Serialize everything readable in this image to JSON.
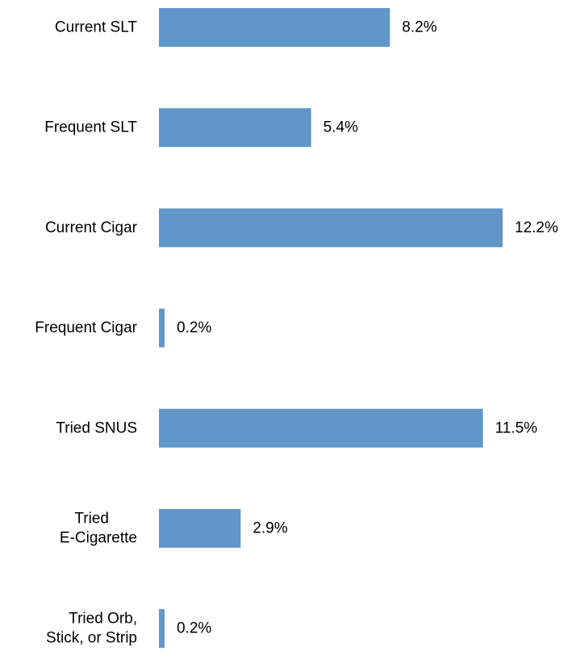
{
  "chart_data": {
    "type": "bar",
    "orientation": "horizontal",
    "categories": [
      [
        "Current SLT"
      ],
      [
        "Frequent SLT"
      ],
      [
        "Current Cigar"
      ],
      [
        "Frequent Cigar"
      ],
      [
        "Tried SNUS"
      ],
      [
        "Tried",
        "E-Cigarette"
      ],
      [
        "Tried Orb,",
        "Stick, or Strip"
      ]
    ],
    "values": [
      8.2,
      5.4,
      12.2,
      0.2,
      11.5,
      2.9,
      0.2
    ],
    "data_labels": [
      "8.2%",
      "5.4%",
      "12.2%",
      "0.2%",
      "11.5%",
      "2.9%",
      "0.2%"
    ],
    "title": "",
    "xlabel": "",
    "ylabel": "",
    "xlim": [
      0,
      12.2
    ],
    "grid": false,
    "bar_color": "#6096C8",
    "text_color": "#000000"
  }
}
